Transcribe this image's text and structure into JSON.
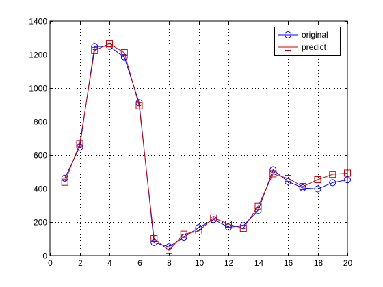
{
  "chart_data": {
    "type": "line",
    "title": "",
    "xlabel": "",
    "ylabel": "",
    "xlim": [
      0,
      20
    ],
    "ylim": [
      0,
      1400
    ],
    "xticks": [
      0,
      2,
      4,
      6,
      8,
      10,
      12,
      14,
      16,
      18,
      20
    ],
    "yticks": [
      0,
      200,
      400,
      600,
      800,
      1000,
      1200,
      1400
    ],
    "grid": true,
    "legend_position": "top-right",
    "x": [
      1,
      2,
      3,
      4,
      5,
      6,
      7,
      8,
      9,
      10,
      11,
      12,
      13,
      14,
      15,
      16,
      17,
      18,
      19,
      20
    ],
    "series": [
      {
        "name": "original",
        "color": "#0000ff",
        "marker": "circle",
        "values": [
          462,
          648,
          1248,
          1250,
          1185,
          913,
          78,
          52,
          110,
          167,
          215,
          170,
          178,
          270,
          512,
          442,
          404,
          398,
          435,
          452
        ]
      },
      {
        "name": "predict",
        "color": "#cc0000",
        "marker": "square",
        "values": [
          438,
          668,
          1225,
          1265,
          1212,
          895,
          102,
          32,
          128,
          147,
          225,
          188,
          163,
          295,
          488,
          461,
          412,
          453,
          485,
          492
        ]
      }
    ]
  }
}
